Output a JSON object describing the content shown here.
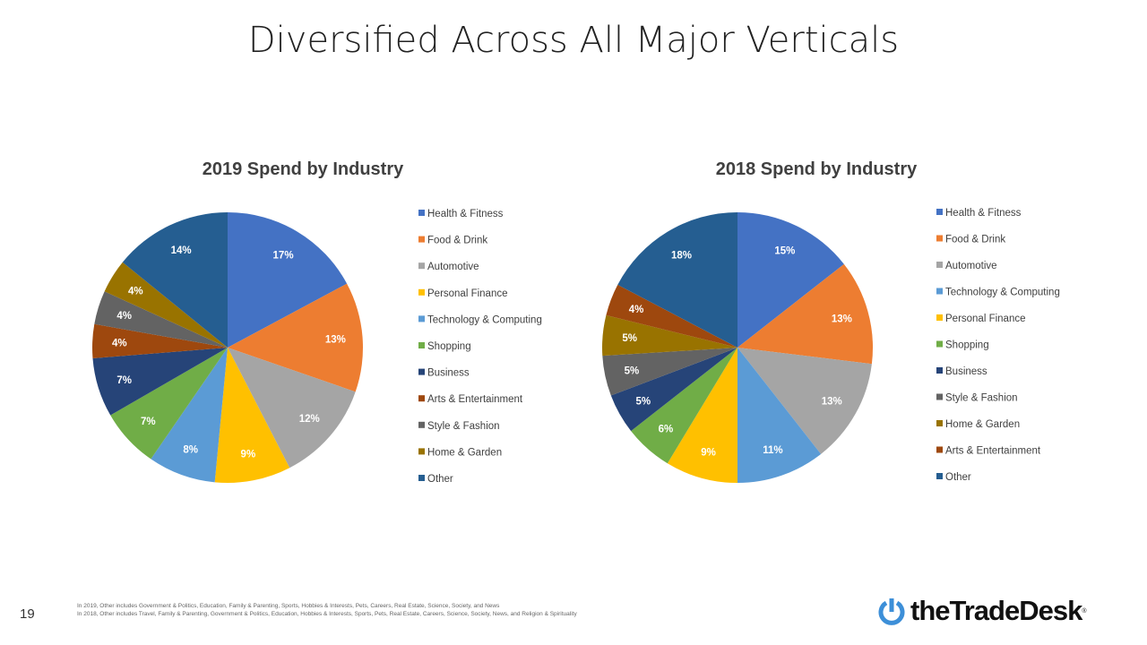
{
  "title": "Diversified Across All Major Verticals",
  "page_number": "19",
  "footnotes": [
    "In 2019, Other includes Government & Politics, Education, Family & Parenting, Sports, Hobbies & Interests, Pets, Careers, Real Estate, Science, Society, and News",
    "In 2018, Other includes Travel, Family & Parenting, Government & Politics, Education, Hobbies & Interests, Sports, Pets, Real Estate, Careers, Science, Society, News, and Religion & Spirituality"
  ],
  "logo": {
    "text": "theTradeDesk",
    "mark": "®",
    "color": "#3d8fd8"
  },
  "chart_data": [
    {
      "type": "pie",
      "title": "2019 Spend by Industry",
      "legend": "right",
      "categories": [
        "Health & Fitness",
        "Food & Drink",
        "Automotive",
        "Personal Finance",
        "Technology & Computing",
        "Shopping",
        "Business",
        "Arts & Entertainment",
        "Style & Fashion",
        "Home & Garden",
        "Other"
      ],
      "values": [
        17,
        13,
        12,
        9,
        8,
        7,
        7,
        4,
        4,
        4,
        14
      ],
      "labels": [
        "17%",
        "13%",
        "12%",
        "9%",
        "8%",
        "7%",
        "7%",
        "4%",
        "4%",
        "4%",
        "14%"
      ],
      "colors": [
        "#4472C4",
        "#ED7D31",
        "#A5A5A5",
        "#FFC000",
        "#5B9BD5",
        "#70AD47",
        "#264478",
        "#9E480E",
        "#636363",
        "#997300",
        "#255E91"
      ]
    },
    {
      "type": "pie",
      "title": "2018 Spend by Industry",
      "legend": "right",
      "categories": [
        "Health & Fitness",
        "Food & Drink",
        "Automotive",
        "Technology & Computing",
        "Personal Finance",
        "Shopping",
        "Business",
        "Style & Fashion",
        "Home & Garden",
        "Arts & Entertainment",
        "Other"
      ],
      "values": [
        15,
        13,
        13,
        11,
        9,
        6,
        5,
        5,
        5,
        4,
        18
      ],
      "labels": [
        "15%",
        "13%",
        "13%",
        "11%",
        "9%",
        "6%",
        "5%",
        "5%",
        "5%",
        "4%",
        "18%"
      ],
      "colors": [
        "#4472C4",
        "#ED7D31",
        "#A5A5A5",
        "#5B9BD5",
        "#FFC000",
        "#70AD47",
        "#264478",
        "#636363",
        "#997300",
        "#9E480E",
        "#255E91"
      ]
    }
  ]
}
